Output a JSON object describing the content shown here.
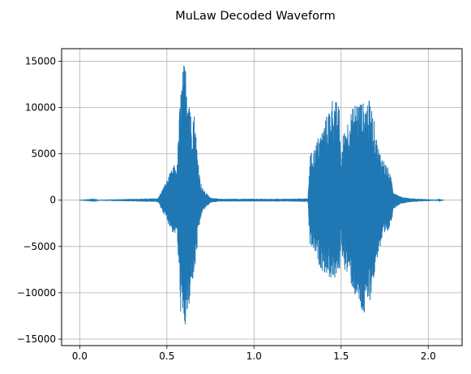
{
  "chart_data": {
    "type": "line",
    "title": "MuLaw Decoded Waveform",
    "xlabel": "",
    "ylabel": "",
    "xlim": [
      -0.104,
      2.194
    ],
    "ylim": [
      -15700,
      16350
    ],
    "xticks": [
      0.0,
      0.5,
      1.0,
      1.5,
      2.0
    ],
    "xtick_labels": [
      "0.0",
      "0.5",
      "1.0",
      "1.5",
      "2.0"
    ],
    "yticks": [
      -15000,
      -10000,
      -5000,
      0,
      5000,
      10000,
      15000
    ],
    "ytick_labels": [
      "−15000",
      "−10000",
      "−5000",
      "0",
      "5000",
      "10000",
      "15000"
    ],
    "grid": true,
    "line_color": "#1f77b4",
    "series": [
      {
        "x": [
          0.0,
          0.44,
          0.45,
          0.54,
          0.55,
          0.56,
          0.57,
          0.58,
          0.59,
          0.6,
          0.61,
          0.62,
          0.63,
          0.64,
          0.65,
          0.66,
          0.67,
          0.68,
          0.69,
          0.7,
          0.72,
          0.75,
          0.8,
          1.0,
          1.2,
          1.31,
          1.32,
          1.33,
          1.35,
          1.37,
          1.39,
          1.41,
          1.43,
          1.45,
          1.47,
          1.49,
          1.5,
          1.51,
          1.53,
          1.55,
          1.57,
          1.59,
          1.61,
          1.63,
          1.65,
          1.67,
          1.69,
          1.71,
          1.73,
          1.75,
          1.77,
          1.79,
          1.8,
          1.82,
          1.84,
          1.9,
          1.95,
          2.0,
          2.09
        ],
        "upper": [
          0,
          200,
          250,
          3800,
          3600,
          4000,
          9000,
          12000,
          14000,
          15000,
          14500,
          13000,
          12500,
          8500,
          10000,
          9200,
          6500,
          4500,
          2500,
          1500,
          900,
          300,
          150,
          150,
          150,
          200,
          5000,
          5200,
          5800,
          7000,
          7600,
          8800,
          10000,
          11200,
          10800,
          10000,
          4000,
          7000,
          8500,
          9200,
          10200,
          11000,
          10800,
          10500,
          11000,
          10600,
          8500,
          6000,
          5000,
          4200,
          3500,
          2200,
          1000,
          700,
          400,
          200,
          150,
          100,
          0
        ],
        "lower": [
          0,
          -200,
          -250,
          -3800,
          -3600,
          -4000,
          -9000,
          -12500,
          -14300,
          -14000,
          -14200,
          -12000,
          -13300,
          -8500,
          -9000,
          -8000,
          -6000,
          -4200,
          -2500,
          -1500,
          -900,
          -300,
          -150,
          -150,
          -150,
          -200,
          -5000,
          -5200,
          -5800,
          -7000,
          -7600,
          -8000,
          -8400,
          -8600,
          -8600,
          -8300,
          -4000,
          -7000,
          -8000,
          -8700,
          -10000,
          -11000,
          -12000,
          -13000,
          -12000,
          -10500,
          -8500,
          -6000,
          -5000,
          -4200,
          -3500,
          -2200,
          -1000,
          -700,
          -400,
          -200,
          -150,
          -100,
          0
        ]
      }
    ]
  }
}
